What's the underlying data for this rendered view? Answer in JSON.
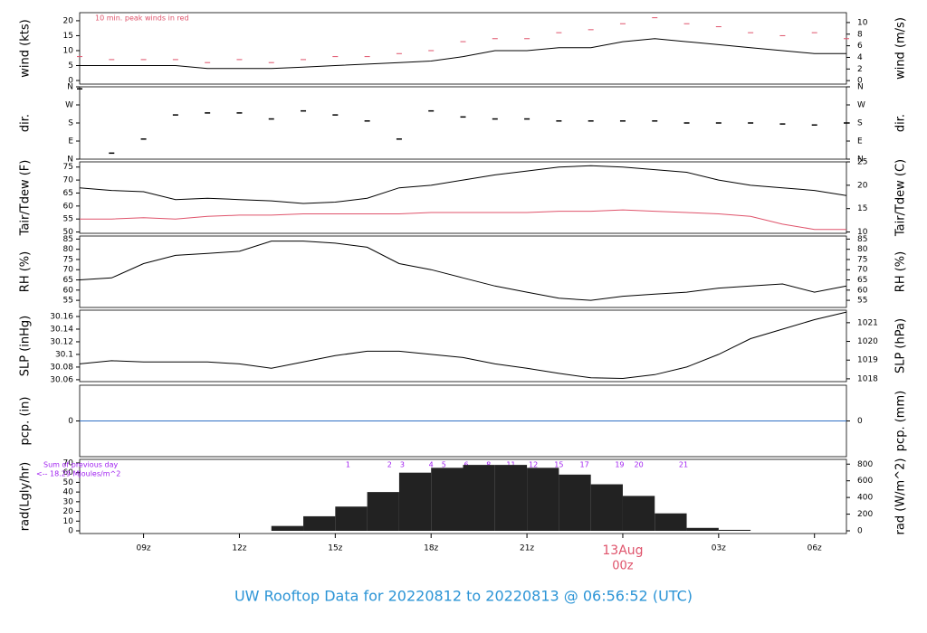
{
  "title": "UW Rooftop Data for 20220812  to  20220813 @ 06:56:52  (UTC)",
  "chart_data": [
    {
      "type": "line",
      "ylabel": "wind (kts)",
      "y2label": "wind (m/s)",
      "annotation": "10 min. peak winds in red",
      "xlim": [
        7,
        31
      ],
      "ylim": [
        -1.2,
        22.7
      ],
      "yticks": [
        0,
        5,
        10,
        15,
        20
      ],
      "y2lim": [
        -0.6,
        11.7
      ],
      "y2ticks": [
        0,
        2,
        4,
        6,
        8,
        10
      ],
      "x": [
        7,
        8,
        9,
        10,
        11,
        12,
        13,
        14,
        15,
        16,
        17,
        18,
        19,
        20,
        21,
        22,
        23,
        24,
        25,
        26,
        27,
        28,
        29,
        30,
        31
      ],
      "series": [
        {
          "name": "wind",
          "color": "#000000",
          "marker": "none",
          "values": [
            5,
            5,
            5,
            5,
            4,
            4,
            4,
            4.5,
            5,
            5.5,
            6,
            6.5,
            8,
            10,
            10,
            11,
            11,
            13,
            14,
            13,
            12,
            11,
            10,
            9,
            9
          ]
        },
        {
          "name": "peak",
          "color": "#df536b",
          "marker": "dash",
          "values": [
            8,
            7,
            7,
            7,
            6,
            7,
            6,
            7,
            8,
            8,
            9,
            10,
            13,
            14,
            14,
            16,
            17,
            19,
            21,
            19,
            18,
            16,
            15,
            16,
            14
          ]
        }
      ]
    },
    {
      "type": "scatter",
      "ylabel": "dir.",
      "y2label": "dir.",
      "xlim": [
        7,
        31
      ],
      "ylim": [
        0,
        360
      ],
      "yticks": [
        {
          "value": 0,
          "label": "N"
        },
        {
          "value": 90,
          "label": "E"
        },
        {
          "value": 180,
          "label": "S"
        },
        {
          "value": 270,
          "label": "W"
        },
        {
          "value": 360,
          "label": "N"
        }
      ],
      "y2lim": [
        0,
        360
      ],
      "y2ticks": [
        {
          "value": 0,
          "label": "N"
        },
        {
          "value": 90,
          "label": "E"
        },
        {
          "value": 180,
          "label": "S"
        },
        {
          "value": 270,
          "label": "W"
        },
        {
          "value": 360,
          "label": "N"
        }
      ],
      "x": [
        7,
        8,
        9,
        10,
        11,
        12,
        13,
        14,
        15,
        16,
        17,
        18,
        19,
        20,
        21,
        22,
        23,
        24,
        25,
        26,
        27,
        28,
        29,
        30,
        31
      ],
      "series": [
        {
          "name": "direction",
          "color": "#000000",
          "values": [
            350,
            30,
            100,
            220,
            230,
            230,
            200,
            240,
            220,
            190,
            100,
            240,
            210,
            200,
            200,
            190,
            190,
            190,
            190,
            180,
            180,
            180,
            175,
            170,
            180
          ]
        }
      ]
    },
    {
      "type": "line",
      "ylabel": "Tair/Tdew (F)",
      "y2label": "Tair/Tdew (C)",
      "xlim": [
        7,
        31
      ],
      "ylim": [
        49.5,
        77
      ],
      "yticks": [
        50,
        55,
        60,
        65,
        70,
        75
      ],
      "y2lim": [
        9.72,
        25
      ],
      "y2ticks": [
        10,
        15,
        20,
        25
      ],
      "x": [
        7,
        8,
        9,
        10,
        11,
        12,
        13,
        14,
        15,
        16,
        17,
        18,
        19,
        20,
        21,
        22,
        23,
        24,
        25,
        26,
        27,
        28,
        29,
        30,
        31
      ],
      "series": [
        {
          "name": "Tair",
          "color": "#000000",
          "marker": "none",
          "values": [
            67,
            66,
            65.5,
            62.5,
            63,
            62.5,
            62,
            61,
            61.5,
            63,
            67,
            68,
            70,
            72,
            73.5,
            75,
            75.5,
            75,
            74,
            73,
            70,
            68,
            67,
            66,
            64
          ]
        },
        {
          "name": "Tdew",
          "color": "#df536b",
          "marker": "none",
          "values": [
            55,
            55,
            55.5,
            55,
            56,
            56.5,
            56.5,
            57,
            57,
            57,
            57,
            57.5,
            57.5,
            57.5,
            57.5,
            58,
            58,
            58.5,
            58,
            57.5,
            57,
            56,
            53,
            51,
            51
          ]
        }
      ]
    },
    {
      "type": "line",
      "ylabel": "RH (%)",
      "y2label": "RH (%)",
      "xlim": [
        7,
        31
      ],
      "ylim": [
        51.5,
        86.5
      ],
      "yticks": [
        55,
        60,
        65,
        70,
        75,
        80,
        85
      ],
      "y2lim": [
        51.5,
        86.5
      ],
      "y2ticks": [
        55,
        60,
        65,
        70,
        75,
        80,
        85
      ],
      "x": [
        7,
        8,
        9,
        10,
        11,
        12,
        13,
        14,
        15,
        16,
        17,
        18,
        19,
        20,
        21,
        22,
        23,
        24,
        25,
        26,
        27,
        28,
        29,
        30,
        31
      ],
      "series": [
        {
          "name": "RH",
          "color": "#000000",
          "marker": "none",
          "values": [
            65,
            66,
            73,
            77,
            78,
            79,
            84,
            84,
            83,
            81,
            73,
            70,
            66,
            62,
            59,
            56,
            55,
            57,
            58,
            59,
            61,
            62,
            63,
            59,
            62
          ]
        }
      ]
    },
    {
      "type": "line",
      "ylabel": "SLP (inHg)",
      "y2label": "SLP (hPa)",
      "xlim": [
        7,
        31
      ],
      "ylim": [
        30.057,
        30.17
      ],
      "yticks": [
        30.06,
        30.08,
        30.1,
        30.12,
        30.14,
        30.16
      ],
      "y2lim": [
        1017.85,
        1021.67
      ],
      "y2ticks": [
        1018,
        1019,
        1020,
        1021
      ],
      "x": [
        7,
        8,
        9,
        10,
        11,
        12,
        13,
        14,
        15,
        16,
        17,
        18,
        19,
        20,
        21,
        22,
        23,
        24,
        25,
        26,
        27,
        28,
        29,
        30,
        31
      ],
      "series": [
        {
          "name": "SLP",
          "color": "#000000",
          "marker": "none",
          "values": [
            30.085,
            30.09,
            30.088,
            30.088,
            30.088,
            30.085,
            30.078,
            30.088,
            30.098,
            30.105,
            30.105,
            30.1,
            30.095,
            30.085,
            30.078,
            30.07,
            30.063,
            30.062,
            30.068,
            30.08,
            30.1,
            30.125,
            30.14,
            30.155,
            30.167
          ]
        }
      ]
    },
    {
      "type": "line",
      "ylabel": "pcp. (in)",
      "y2label": "pcp. (mm)",
      "xlim": [
        7,
        31
      ],
      "ylim": [
        -1,
        1
      ],
      "yticks": [
        0
      ],
      "y2lim": [
        -25.4,
        25.4
      ],
      "y2ticks": [
        0
      ],
      "x": [
        7,
        8,
        9,
        10,
        11,
        12,
        13,
        14,
        15,
        16,
        17,
        18,
        19,
        20,
        21,
        22,
        23,
        24,
        25,
        26,
        27,
        28,
        29,
        30,
        31
      ],
      "series": [
        {
          "name": "pcp",
          "color": "#2f6fc4",
          "marker": "none",
          "values": [
            0,
            0,
            0,
            0,
            0,
            0,
            0,
            0,
            0,
            0,
            0,
            0,
            0,
            0,
            0,
            0,
            0,
            0,
            0,
            0,
            0,
            0,
            0,
            0,
            0
          ]
        }
      ]
    },
    {
      "type": "bar",
      "ylabel": "rad(Lgly/hr)",
      "y2label": "rad (W/m^2)",
      "annotations": [
        "Sum of previous day",
        "<-- 18.29 MJoules/m^2"
      ],
      "xlim": [
        7,
        31
      ],
      "ylim": [
        -2.8,
        73.7
      ],
      "yticks": [
        0,
        10,
        20,
        30,
        40,
        50,
        60,
        70
      ],
      "y2lim": [
        -32.6,
        857
      ],
      "y2ticks": [
        0,
        200,
        400,
        600,
        800
      ],
      "xticks": [
        {
          "value": 9,
          "label": "09z"
        },
        {
          "value": 12,
          "label": "12z"
        },
        {
          "value": 15,
          "label": "15z"
        },
        {
          "value": 18,
          "label": "18z"
        },
        {
          "value": 21,
          "label": "21z"
        },
        {
          "value": 24,
          "label": "00z"
        },
        {
          "value": 27,
          "label": "03z"
        },
        {
          "value": 30,
          "label": "06z"
        }
      ],
      "date_label": {
        "value": 24,
        "label": "13Aug"
      },
      "hour_marks": [
        {
          "x": 15.4,
          "label": "1"
        },
        {
          "x": 16.7,
          "label": "2"
        },
        {
          "x": 17.1,
          "label": "3"
        },
        {
          "x": 18.0,
          "label": "4"
        },
        {
          "x": 18.4,
          "label": "5"
        },
        {
          "x": 19.1,
          "label": "6"
        },
        {
          "x": 19.8,
          "label": "8"
        },
        {
          "x": 20.5,
          "label": "11"
        },
        {
          "x": 21.2,
          "label": "12"
        },
        {
          "x": 22.0,
          "label": "15"
        },
        {
          "x": 22.8,
          "label": "17"
        },
        {
          "x": 23.9,
          "label": "19"
        },
        {
          "x": 24.5,
          "label": "20"
        },
        {
          "x": 25.9,
          "label": "21"
        }
      ],
      "x": [
        7,
        8,
        9,
        10,
        11,
        12,
        13,
        14,
        15,
        16,
        17,
        18,
        19,
        20,
        21,
        22,
        23,
        24,
        25,
        26,
        27,
        28,
        29,
        30
      ],
      "series": [
        {
          "name": "rad",
          "color": "#222222",
          "values": [
            0,
            0,
            0,
            0,
            0,
            0,
            5,
            15,
            25,
            40,
            60,
            65,
            68,
            68,
            65,
            58,
            48,
            36,
            18,
            3,
            1,
            0,
            0,
            0
          ]
        }
      ]
    }
  ]
}
